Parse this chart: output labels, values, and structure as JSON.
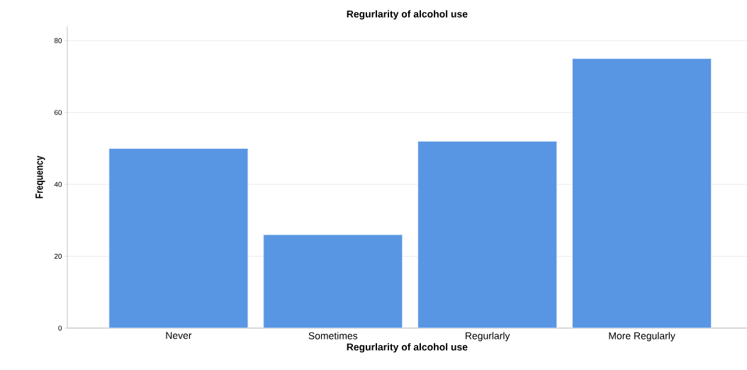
{
  "chart_data": {
    "type": "bar",
    "title": "Regurlarity of alcohol use",
    "xlabel": "Regurlarity of alcohol use",
    "ylabel": "Frequency",
    "categories": [
      "Never",
      "Sometimes",
      "Regurlarly",
      "More Regularly"
    ],
    "values": [
      50,
      26,
      52,
      75
    ],
    "color": "#5896e3",
    "ylim": [
      0,
      84
    ],
    "yticks": [
      0,
      20,
      40,
      60,
      80
    ],
    "grid": "y"
  }
}
